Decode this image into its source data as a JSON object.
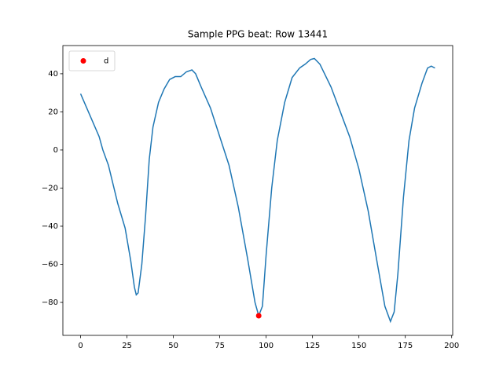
{
  "chart_data": {
    "type": "line",
    "title": "Sample PPG beat: Row 13441",
    "x": [
      0,
      10,
      12,
      15,
      20,
      24,
      27,
      29,
      30,
      31,
      33,
      35,
      37,
      39,
      42,
      45,
      48,
      51,
      54,
      57,
      60,
      62,
      65,
      70,
      75,
      80,
      85,
      90,
      94,
      96,
      98,
      100,
      103,
      106,
      110,
      114,
      118,
      121,
      124,
      126,
      129,
      135,
      140,
      145,
      150,
      155,
      160,
      164,
      167,
      169,
      171,
      174,
      177,
      180,
      184,
      187,
      189,
      191
    ],
    "values": [
      29.5,
      7,
      0,
      -8,
      -28,
      -41,
      -58,
      -72,
      -76,
      -75,
      -60,
      -35,
      -5,
      12,
      25,
      32,
      37,
      38.5,
      38.5,
      41,
      42,
      40,
      33,
      22,
      7,
      -8,
      -30,
      -57,
      -80,
      -87,
      -82,
      -55,
      -20,
      5,
      25,
      38,
      43,
      45,
      47.5,
      48,
      45,
      33,
      20,
      7,
      -10,
      -32,
      -60,
      -82,
      -90,
      -85,
      -65,
      -25,
      5,
      22,
      35,
      43,
      44,
      43
    ],
    "color": "#1f77b4",
    "points": {
      "name": "d",
      "x": [
        96
      ],
      "values": [
        -87
      ],
      "color": "red"
    },
    "legend": "upper left",
    "xlim": [
      -9.55,
      200.55
    ],
    "ylim": [
      -97.3,
      54.8
    ],
    "xticks": [
      0,
      25,
      50,
      75,
      100,
      125,
      150,
      175,
      200
    ],
    "yticks": [
      {
        "value": -80,
        "label": "−80"
      },
      {
        "value": -60,
        "label": "−60"
      },
      {
        "value": -40,
        "label": "−40"
      },
      {
        "value": -20,
        "label": "−20"
      },
      0,
      20,
      40
    ]
  }
}
